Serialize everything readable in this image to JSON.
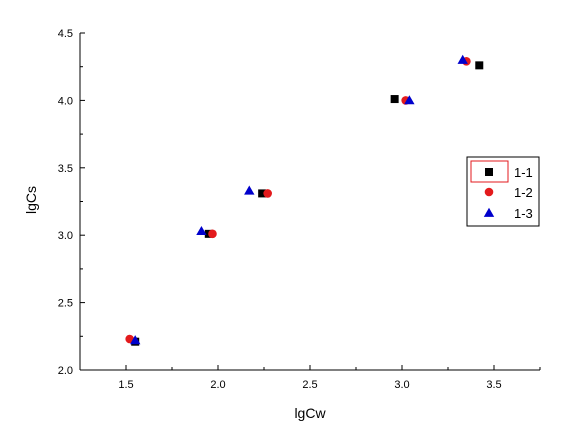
{
  "chart_data": {
    "type": "scatter",
    "title": "",
    "xlabel": "lgCw",
    "ylabel": "lgCs",
    "xlim": [
      1.25,
      3.75
    ],
    "ylim": [
      2.0,
      4.5
    ],
    "xticks": [
      "1.5",
      "2.0",
      "2.5",
      "3.0",
      "3.5"
    ],
    "yticks": [
      "2.0",
      "2.5",
      "3.0",
      "3.5",
      "4.0",
      "4.5"
    ],
    "grid": false,
    "legend_position": "right",
    "series": [
      {
        "name": "1-1",
        "marker": "square",
        "color": "#000000",
        "points": [
          [
            1.55,
            2.21
          ],
          [
            1.95,
            3.01
          ],
          [
            2.24,
            3.31
          ],
          [
            2.96,
            4.01
          ],
          [
            3.42,
            4.26
          ]
        ]
      },
      {
        "name": "1-2",
        "marker": "circle",
        "color": "#e31a1c",
        "points": [
          [
            1.52,
            2.23
          ],
          [
            1.97,
            3.01
          ],
          [
            2.27,
            3.31
          ],
          [
            3.02,
            4.0
          ],
          [
            3.35,
            4.29
          ]
        ]
      },
      {
        "name": "1-3",
        "marker": "triangle",
        "color": "#0000cc",
        "points": [
          [
            1.55,
            2.22
          ],
          [
            1.91,
            3.03
          ],
          [
            2.17,
            3.33
          ],
          [
            3.04,
            4.0
          ],
          [
            3.33,
            4.3
          ]
        ]
      }
    ]
  }
}
